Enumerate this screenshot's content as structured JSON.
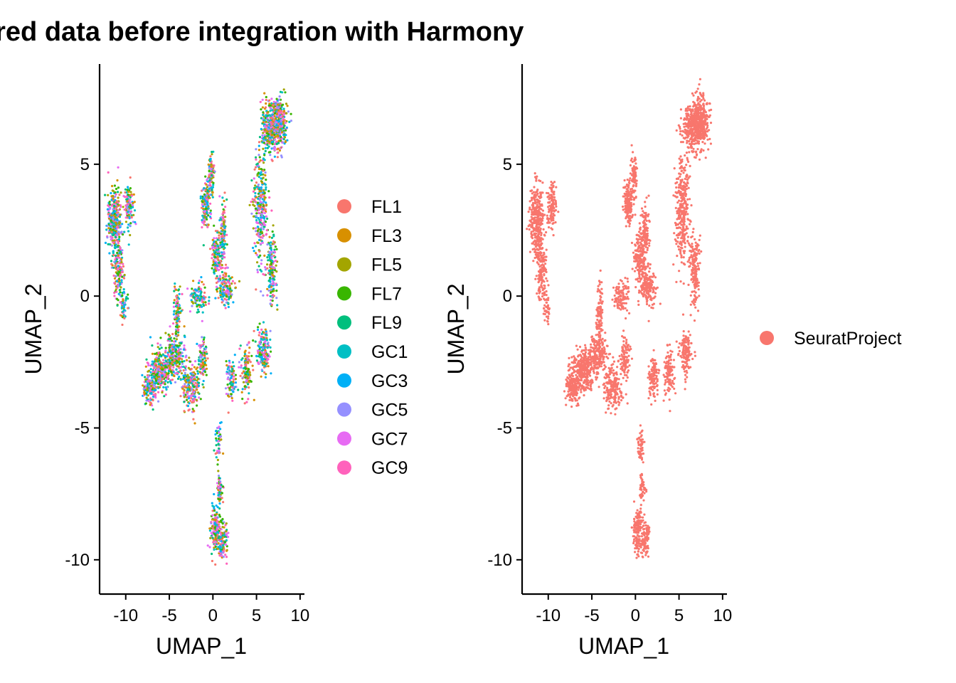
{
  "title": "ered data before integration with Harmony",
  "chart_data": [
    {
      "type": "scatter",
      "panel": "left",
      "xlabel": "UMAP_1",
      "ylabel": "UMAP_2",
      "xlim": [
        -13,
        10.5
      ],
      "ylim": [
        -11.3,
        8.8
      ],
      "xticks": [
        -10,
        -5,
        0,
        5,
        10
      ],
      "xtick_labels": [
        "-10",
        "-5",
        "0",
        "5",
        "10"
      ],
      "yticks": [
        -10,
        -5,
        0,
        5
      ],
      "ytick_labels": [
        "-10",
        "-5",
        "0",
        "5"
      ],
      "grid": false,
      "legend_position": "right",
      "series": [
        {
          "name": "FL1",
          "color": "#F8766D"
        },
        {
          "name": "FL3",
          "color": "#D89000"
        },
        {
          "name": "FL5",
          "color": "#A3A500"
        },
        {
          "name": "FL7",
          "color": "#39B600"
        },
        {
          "name": "FL9",
          "color": "#00BF7D"
        },
        {
          "name": "GC1",
          "color": "#00BFC4"
        },
        {
          "name": "GC3",
          "color": "#00B0F6"
        },
        {
          "name": "GC5",
          "color": "#9590FF"
        },
        {
          "name": "GC7",
          "color": "#E76BF3"
        },
        {
          "name": "GC9",
          "color": "#FF62BC"
        }
      ]
    },
    {
      "type": "scatter",
      "panel": "right",
      "xlabel": "UMAP_1",
      "ylabel": "UMAP_2",
      "xlim": [
        -13,
        10.5
      ],
      "ylim": [
        -11.3,
        8.8
      ],
      "xticks": [
        -10,
        -5,
        0,
        5,
        10
      ],
      "xtick_labels": [
        "-10",
        "-5",
        "0",
        "5",
        "10"
      ],
      "yticks": [
        -10,
        -5,
        0,
        5
      ],
      "ytick_labels": [
        "-10",
        "-5",
        "0",
        "5"
      ],
      "grid": false,
      "legend_position": "right",
      "series": [
        {
          "name": "SeuratProject",
          "color": "#F8766D"
        }
      ]
    }
  ],
  "cluster_shape": [
    {
      "x": -11.3,
      "y": 2.9,
      "sx": 0.75,
      "sy": 1.15,
      "w": 6
    },
    {
      "x": -10.8,
      "y": 1.0,
      "sx": 0.55,
      "sy": 1.0,
      "w": 3
    },
    {
      "x": -10.2,
      "y": -0.4,
      "sx": 0.4,
      "sy": 0.5,
      "w": 1
    },
    {
      "x": -9.6,
      "y": 3.4,
      "sx": 0.5,
      "sy": 0.8,
      "w": 2
    },
    {
      "x": -6.0,
      "y": -2.8,
      "sx": 1.1,
      "sy": 0.7,
      "w": 6
    },
    {
      "x": -7.2,
      "y": -3.5,
      "sx": 0.7,
      "sy": 0.5,
      "w": 3
    },
    {
      "x": -4.3,
      "y": -2.2,
      "sx": 0.9,
      "sy": 0.7,
      "w": 4
    },
    {
      "x": -4.1,
      "y": -0.6,
      "sx": 0.35,
      "sy": 0.9,
      "w": 2
    },
    {
      "x": -2.6,
      "y": -3.4,
      "sx": 0.9,
      "sy": 0.8,
      "w": 4
    },
    {
      "x": -1.2,
      "y": -2.4,
      "sx": 0.45,
      "sy": 0.7,
      "w": 2
    },
    {
      "x": -1.6,
      "y": 0.0,
      "sx": 0.9,
      "sy": 0.5,
      "w": 2
    },
    {
      "x": -0.8,
      "y": 3.5,
      "sx": 0.45,
      "sy": 0.8,
      "w": 3
    },
    {
      "x": -0.2,
      "y": 4.6,
      "sx": 0.3,
      "sy": 0.7,
      "w": 2
    },
    {
      "x": 0.5,
      "y": 1.5,
      "sx": 0.6,
      "sy": 0.9,
      "w": 3
    },
    {
      "x": 1.5,
      "y": 0.3,
      "sx": 0.8,
      "sy": 0.6,
      "w": 3
    },
    {
      "x": 1.2,
      "y": 2.4,
      "sx": 0.4,
      "sy": 1.0,
      "w": 2
    },
    {
      "x": 0.6,
      "y": -5.6,
      "sx": 0.35,
      "sy": 0.6,
      "w": 1
    },
    {
      "x": 0.3,
      "y": -8.9,
      "sx": 0.5,
      "sy": 0.8,
      "w": 3
    },
    {
      "x": 1.2,
      "y": -9.3,
      "sx": 0.45,
      "sy": 0.6,
      "w": 2
    },
    {
      "x": 0.8,
      "y": -7.3,
      "sx": 0.3,
      "sy": 0.6,
      "w": 1
    },
    {
      "x": 2.1,
      "y": -3.1,
      "sx": 0.5,
      "sy": 0.7,
      "w": 2
    },
    {
      "x": 3.8,
      "y": -2.9,
      "sx": 0.6,
      "sy": 0.9,
      "w": 2
    },
    {
      "x": 5.8,
      "y": -2.1,
      "sx": 0.7,
      "sy": 0.8,
      "w": 3
    },
    {
      "x": 5.4,
      "y": 3.3,
      "sx": 0.75,
      "sy": 1.9,
      "w": 6
    },
    {
      "x": 6.8,
      "y": 1.0,
      "sx": 0.5,
      "sy": 1.2,
      "w": 3
    },
    {
      "x": 6.5,
      "y": 6.4,
      "sx": 0.95,
      "sy": 0.9,
      "w": 6
    },
    {
      "x": 7.6,
      "y": 6.6,
      "sx": 0.8,
      "sy": 0.9,
      "w": 5
    }
  ]
}
